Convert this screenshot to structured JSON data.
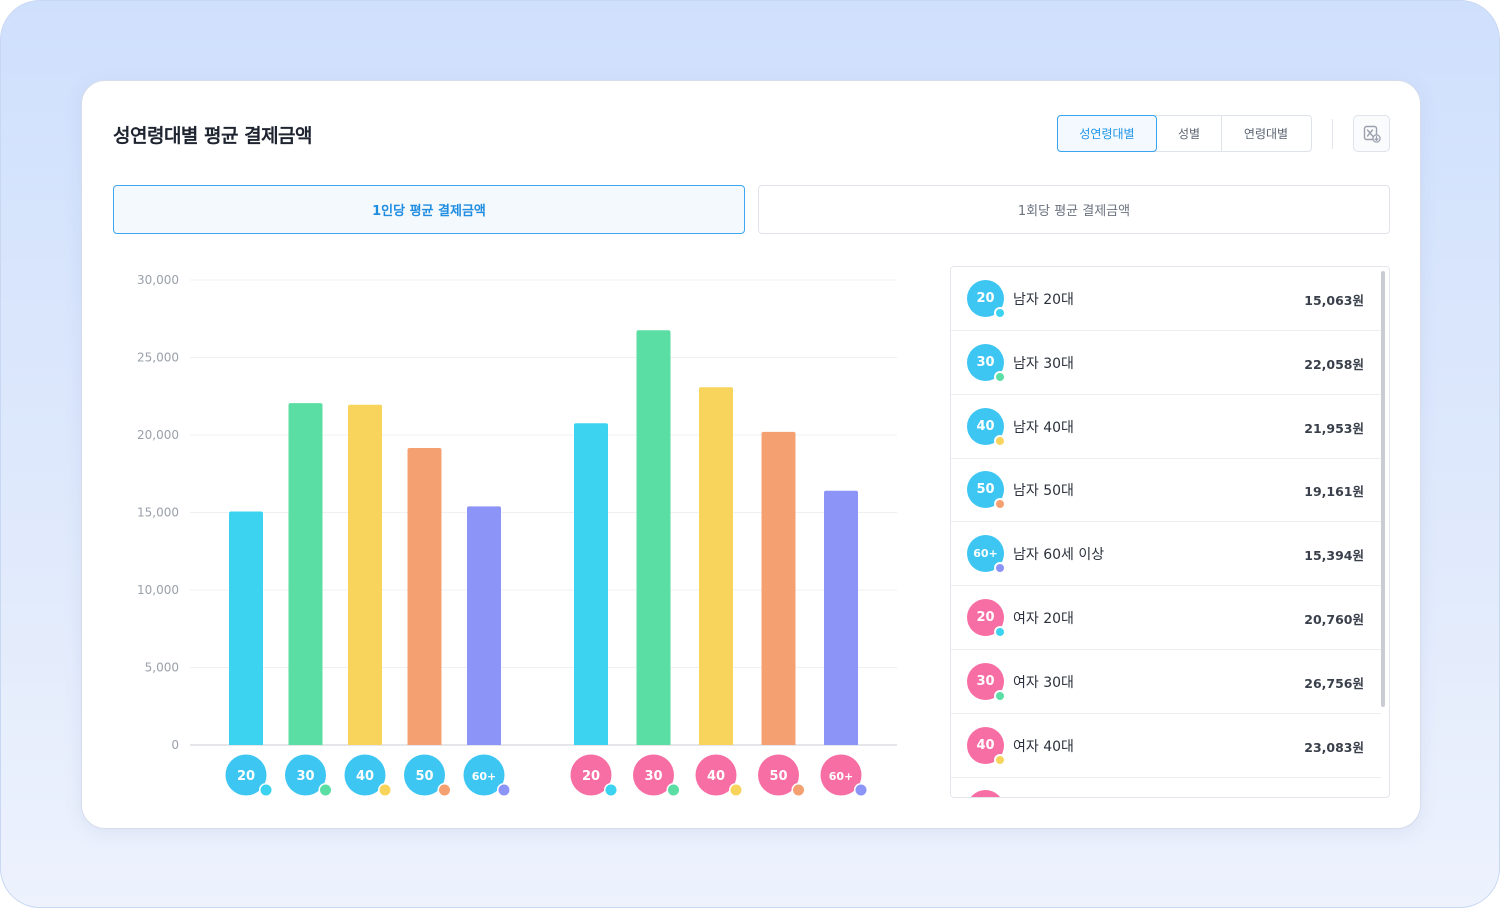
{
  "header": {
    "title": "성연령대별 평균 결제금액",
    "segments": [
      "성연령대별",
      "성별",
      "연령대별"
    ],
    "active_segment": 0,
    "excel_icon": "excel-download-icon"
  },
  "tabs": [
    {
      "label": "1인당 평균 결제금액",
      "active": true
    },
    {
      "label": "1회당 평균 결제금액",
      "active": false
    }
  ],
  "colors": {
    "male": "#3ec6f3",
    "female": "#f76ea4",
    "age_20": "#3bd3f0",
    "age_30": "#5bdea3",
    "age_40": "#f8d45c",
    "age_50": "#f5a070",
    "age_60": "#8c94f8"
  },
  "chart_data": {
    "type": "bar",
    "y_ticks": [
      "30,000",
      "25,000",
      "20,000",
      "15,000",
      "10,000",
      "5,000",
      "0"
    ],
    "ylim": [
      0,
      30000
    ],
    "groups": [
      {
        "gender": "male",
        "categories": [
          "20",
          "30",
          "40",
          "50",
          "60+"
        ],
        "values": [
          15063,
          22058,
          21953,
          19161,
          15394
        ]
      },
      {
        "gender": "female",
        "categories": [
          "20",
          "30",
          "40",
          "50",
          "60+"
        ],
        "values": [
          20760,
          26756,
          23083,
          20200,
          16400
        ]
      }
    ],
    "age_color_keys": [
      "age_20",
      "age_30",
      "age_40",
      "age_50",
      "age_60"
    ],
    "grid": true,
    "legend": "none"
  },
  "list": {
    "items": [
      {
        "badge": "20",
        "label": "남자 20대",
        "value": "15,063원",
        "gender": "male",
        "age_color": "age_20"
      },
      {
        "badge": "30",
        "label": "남자 30대",
        "value": "22,058원",
        "gender": "male",
        "age_color": "age_30"
      },
      {
        "badge": "40",
        "label": "남자 40대",
        "value": "21,953원",
        "gender": "male",
        "age_color": "age_40"
      },
      {
        "badge": "50",
        "label": "남자 50대",
        "value": "19,161원",
        "gender": "male",
        "age_color": "age_50"
      },
      {
        "badge": "60+",
        "label": "남자 60세 이상",
        "value": "15,394원",
        "gender": "male",
        "age_color": "age_60"
      },
      {
        "badge": "20",
        "label": "여자 20대",
        "value": "20,760원",
        "gender": "female",
        "age_color": "age_20"
      },
      {
        "badge": "30",
        "label": "여자 30대",
        "value": "26,756원",
        "gender": "female",
        "age_color": "age_30"
      },
      {
        "badge": "40",
        "label": "여자 40대",
        "value": "23,083원",
        "gender": "female",
        "age_color": "age_40"
      },
      {
        "badge": "",
        "label": "",
        "value": "",
        "gender": "female",
        "age_color": "age_50"
      }
    ]
  }
}
